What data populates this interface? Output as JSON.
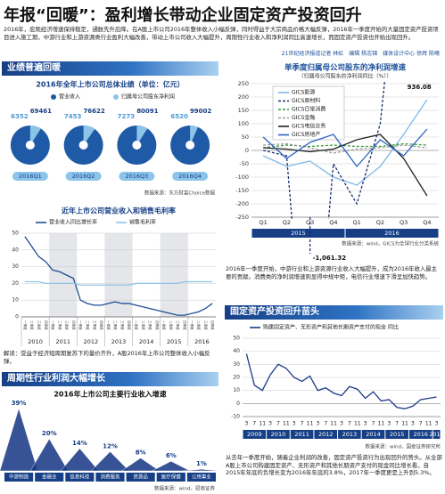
{
  "header": {
    "title": "年报“回暖”：盈利增长带动企业固定资产投资回升",
    "intro": "2016年，宏观经济增速保持稳定，通胀先升后降。在A股上市公司2016年整体收入小幅反弹，同时得益于大宗商品价格大幅反弹，2016年一季度开始的大量固定资产投资项目进入施工期，中游行业和上游资源类行业盈利大幅改善，带动上市公司收入大幅提升，周期性行业收入和净利润同比高速增长，而固定资产投资也开始出现回升。",
    "byline": "21世纪经济报道记者 林虹　编辑 杨志锦　媒体设计中心 徐辉 陈曦"
  },
  "sections": [
    "业绩普遍回暖",
    "周期性行业利润大幅增长",
    "固定资产投资回升苗头"
  ],
  "notes": [
    "解读：受益于经济短周期复苏下的量价齐升，A股2016年上市公司整体收入小幅反弹。",
    "2016年一季度开始，中游行业和上游资源行业收入大幅提升，成为2016年收入最主要的贡献。消费类的净利润增速则显得中规中矩，电信行业增速下滑呈加快趋势。",
    "从去年一季度开始，随着企业利润的改善，固定资产投资行为出现回升的势头。从全部A股上市公司购建固定资产、无形资产和其他长期资产支付的现金同比增长看，自2015年年底的负增长变为2016年年底的3.8%，2017年一季度更是上升到5.3%。"
  ],
  "chart_data": [
    {
      "type": "pie",
      "title": "2016年全年上市公司总体业绩（单位：亿元）",
      "categories": [
        "2016Q1",
        "2016Q2",
        "2016Q3",
        "2016Q4"
      ],
      "series": [
        {
          "name": "营业收入",
          "color": "#1f5aa6",
          "values": [
            69461,
            76622,
            80091,
            99002
          ]
        },
        {
          "name": "归属母公司股东净利润",
          "color": "#8cc4ea",
          "values": [
            6352,
            7453,
            7273,
            6520
          ]
        }
      ],
      "source": "数据来源：东方财富Choice数据"
    },
    {
      "type": "line",
      "title": "近年上市公司营业收入和销售毛利率",
      "categories": [
        "一季度",
        "二季度",
        "三季度",
        "四季度",
        "一季度",
        "二季度",
        "三季度",
        "四季度",
        "一季度",
        "二季度",
        "三季度",
        "四季度",
        "一季度",
        "二季度",
        "三季度",
        "四季度",
        "一季度",
        "二季度",
        "三季度",
        "四季度",
        "一季度",
        "二季度",
        "三季度",
        "四季度",
        "一季度",
        "二季度",
        "三季度",
        "四季度"
      ],
      "x_groups": [
        {
          "label": "2010",
          "count": 4
        },
        {
          "label": "2011",
          "count": 4
        },
        {
          "label": "2012",
          "count": 4
        },
        {
          "label": "2013",
          "count": 4
        },
        {
          "label": "2014",
          "count": 4
        },
        {
          "label": "2015",
          "count": 4
        },
        {
          "label": "2016",
          "count": 4
        }
      ],
      "series": [
        {
          "name": "营业收入同比增长率",
          "color": "#1f4e96",
          "values": [
            48,
            42,
            36,
            33,
            28,
            27,
            25,
            23,
            10,
            8,
            7,
            7,
            8,
            9,
            8,
            8,
            7,
            6,
            5,
            4,
            3,
            2,
            1,
            1,
            2,
            3,
            5,
            8
          ]
        },
        {
          "name": "销售毛利率",
          "color": "#8fc3e8",
          "values": [
            21,
            21,
            21,
            20,
            20,
            20,
            20,
            20,
            19,
            19,
            19,
            19,
            19,
            19,
            19,
            19,
            20,
            20,
            20,
            20,
            20,
            20,
            20,
            21,
            21,
            21,
            21,
            21
          ]
        }
      ],
      "ylim": [
        0,
        50
      ],
      "yticks": [
        0,
        10,
        20,
        30,
        40,
        50
      ],
      "grid": true
    },
    {
      "type": "bar",
      "title": "2016年上市公司主要行业收入增速",
      "categories": [
        "中游制造",
        "金融业",
        "信息科技",
        "消费服务",
        "资源品",
        "医疗保健",
        "公用事业"
      ],
      "values": [
        39,
        20,
        14,
        12,
        8,
        6,
        1
      ],
      "value_labels": [
        "39%",
        "20%",
        "14%",
        "12%",
        "8%",
        "6%",
        "1%"
      ],
      "color": "#1b3a86",
      "source": "数据来源：wind，招商证券"
    },
    {
      "type": "line",
      "title": "单季度归属母公司股东的净利润增速",
      "subtitle": "（归属母公司股东的净利润同比（%））",
      "categories": [
        "Q1",
        "Q2",
        "Q3",
        "Q4",
        "Q1",
        "Q2",
        "Q3",
        "Q4"
      ],
      "x_groups": [
        {
          "label": "2015",
          "count": 4
        },
        {
          "label": "2016",
          "count": 4
        }
      ],
      "series": [
        {
          "name": "GICS能源",
          "color": "#7fb8e6",
          "values": [
            -20,
            -60,
            -40,
            -100,
            -130,
            -60,
            60,
            190
          ]
        },
        {
          "name": "GICS原材料",
          "color": "#17306e",
          "dash": true,
          "values": [
            0,
            -20,
            -1061.32,
            -50,
            -200,
            100,
            936.08,
            250
          ],
          "value_labels": [
            null,
            null,
            "-1,061.32",
            null,
            null,
            null,
            "936.08",
            null
          ]
        },
        {
          "name": "GICS日常消费",
          "color": "#3a9a3a",
          "dash": true,
          "values": [
            10,
            20,
            15,
            20,
            15,
            15,
            25,
            20
          ]
        },
        {
          "name": "GICS金融",
          "color": "#9a9a9a",
          "dash": true,
          "values": [
            20,
            25,
            10,
            -10,
            5,
            10,
            20,
            10
          ]
        },
        {
          "name": "GICS电信业务",
          "color": "#222222",
          "values": [
            10,
            5,
            -5,
            5,
            40,
            60,
            -30,
            -170
          ]
        },
        {
          "name": "GICS房地产",
          "color": "#2b62c0",
          "values": [
            50,
            -30,
            30,
            60,
            -60,
            40,
            -20,
            80
          ]
        }
      ],
      "ylim": [
        -250,
        250
      ],
      "yticks": [
        -250,
        -200,
        -150,
        -100,
        -50,
        0,
        50,
        100,
        150,
        200,
        250
      ],
      "grid": true,
      "source": "数据来源：wind，GICS为全球行业分类系统"
    },
    {
      "type": "line",
      "categories": [
        "3",
        "7",
        "11",
        "3",
        "7",
        "11",
        "3",
        "7",
        "11",
        "3",
        "7",
        "11",
        "3",
        "7",
        "11",
        "3",
        "7",
        "11",
        "3",
        "7",
        "11",
        "3",
        "7",
        "11",
        "3"
      ],
      "x_groups": [
        {
          "label": "2009",
          "count": 3
        },
        {
          "label": "2010",
          "count": 3
        },
        {
          "label": "2011",
          "count": 3
        },
        {
          "label": "2012",
          "count": 3
        },
        {
          "label": "2013",
          "count": 3
        },
        {
          "label": "2014",
          "count": 3
        },
        {
          "label": "2015",
          "count": 3
        },
        {
          "label": "2016",
          "count": 3
        },
        {
          "label": "2017",
          "count": 1
        }
      ],
      "series": [
        {
          "name": "购建固定资产、无形资产和其他长期资产支付的现金 同比",
          "color": "#1b3a86",
          "values": [
            38,
            14,
            10,
            22,
            30,
            27,
            20,
            17,
            21,
            10,
            12,
            8,
            6,
            13,
            11,
            4,
            9,
            2,
            3,
            -3,
            -4,
            -2,
            3,
            4,
            5
          ]
        }
      ],
      "ylim": [
        -10,
        50
      ],
      "yticks": [
        -10,
        0,
        10,
        20,
        30,
        40,
        50
      ],
      "grid": true,
      "source": "数据来源：wind，国金证券研究所"
    }
  ]
}
